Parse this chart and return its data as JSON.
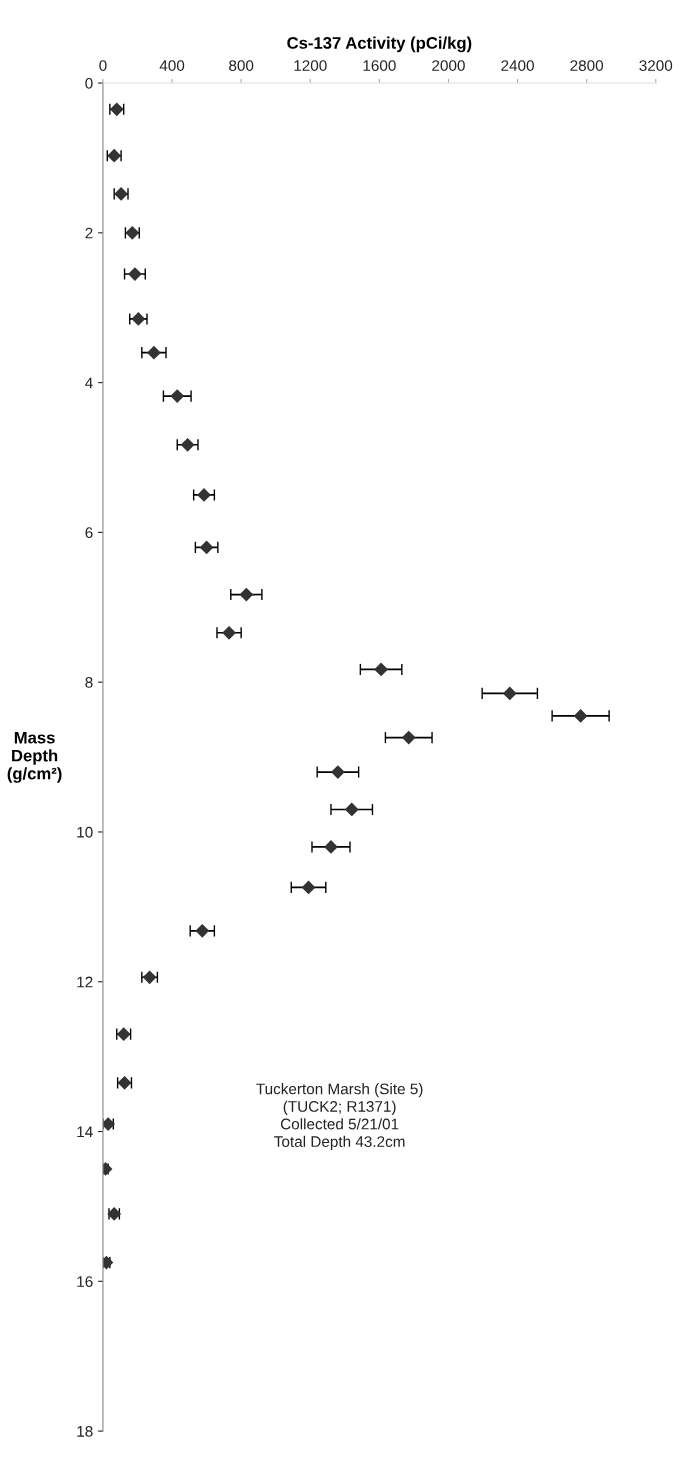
{
  "chart_data": {
    "type": "scatter",
    "xlabel": "Cs-137 Activity (pCi/kg)",
    "ylabel": "Mass\nDepth\n(g/cm²)",
    "annotations": [
      "Tuckerton Marsh (Site 5)\n(TUCK2; R1371)\nCollected 5/21/01\nTotal Depth 43.2cm"
    ],
    "series": [
      {
        "color": "#333333",
        "x": [
          80,
          65,
          105,
          170,
          185,
          205,
          295,
          430,
          490,
          585,
          600,
          830,
          730,
          1610,
          2355,
          2765,
          1770,
          1360,
          1440,
          1320,
          1190,
          575,
          270,
          120,
          125,
          30,
          15,
          65,
          20
        ],
        "values": [
          0.35,
          0.97,
          1.48,
          2.0,
          2.55,
          3.15,
          3.6,
          4.18,
          4.83,
          5.5,
          6.2,
          6.83,
          7.34,
          7.83,
          8.15,
          8.45,
          8.74,
          9.2,
          9.7,
          10.2,
          10.74,
          11.32,
          11.94,
          12.7,
          13.35,
          13.9,
          14.5,
          15.1,
          15.75
        ],
        "xerrors": [
          40,
          40,
          40,
          40,
          60,
          50,
          70,
          80,
          60,
          60,
          65,
          90,
          70,
          120,
          160,
          165,
          135,
          120,
          120,
          110,
          100,
          70,
          45,
          40,
          40,
          30,
          15,
          30,
          20
        ]
      }
    ],
    "marker": "diamond",
    "xlim": [
      0,
      3200
    ],
    "xticks": [
      0,
      400,
      800,
      1200,
      1600,
      2000,
      2400,
      2800,
      3200
    ],
    "ylim": [
      18,
      0
    ],
    "yticks": [
      0,
      2,
      4,
      6,
      8,
      10,
      12,
      14,
      16,
      18
    ],
    "grid": false,
    "legend": false
  }
}
